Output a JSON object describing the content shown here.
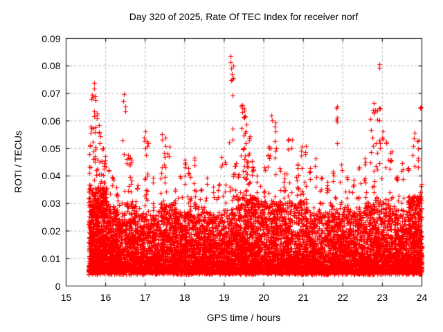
{
  "chart_data": {
    "type": "scatter",
    "title": "Day 320 of 2025, Rate Of TEC Index for receiver norf",
    "xlabel": "GPS time / hours",
    "ylabel": "ROTI / TECUs",
    "xlim": [
      15,
      24
    ],
    "ylim": [
      0,
      0.09
    ],
    "xticks": [
      15,
      16,
      17,
      18,
      19,
      20,
      21,
      22,
      23,
      24
    ],
    "yticks": [
      0,
      0.01,
      0.02,
      0.03,
      0.04,
      0.05,
      0.06,
      0.07,
      0.08,
      0.09
    ],
    "ytick_labels": [
      "0",
      "0.01",
      "0.02",
      "0.03",
      "0.04",
      "0.05",
      "0.06",
      "0.07",
      "0.08",
      "0.09"
    ],
    "grid": true,
    "legend": "none",
    "marker": {
      "symbol": "plus",
      "color": "#ff0000",
      "size": 7,
      "line_width": 1.2
    },
    "colors": {
      "grid": "#b0b0b0",
      "border": "#000000",
      "text": "#000000",
      "background": "#ffffff"
    },
    "data_time_range": [
      15.55,
      24.0
    ],
    "scatter_model": {
      "seed": 2025320,
      "baseline": {
        "n": 3400,
        "t_min": 15.56,
        "t_max": 23.99,
        "y_min": 0.0042,
        "y_scale": 0.0068,
        "y_cap": 0.035
      },
      "gap": {
        "t0": 19.95,
        "t1": 20.05,
        "drop": 0.5
      },
      "dense_bands": [
        [
          15.57,
          16.03,
          800,
          0.036
        ],
        [
          16.03,
          16.32,
          280,
          0.028
        ],
        [
          16.32,
          16.78,
          330,
          0.031
        ],
        [
          16.78,
          17.3,
          300,
          0.026
        ],
        [
          17.3,
          17.78,
          320,
          0.03
        ],
        [
          17.78,
          18.12,
          260,
          0.027
        ],
        [
          18.12,
          18.5,
          280,
          0.029
        ],
        [
          18.5,
          19.0,
          300,
          0.027
        ],
        [
          19.0,
          19.3,
          220,
          0.028
        ],
        [
          19.3,
          19.85,
          480,
          0.033
        ],
        [
          19.85,
          20.45,
          400,
          0.031
        ],
        [
          20.45,
          21.15,
          420,
          0.031
        ],
        [
          21.15,
          21.7,
          300,
          0.027
        ],
        [
          21.7,
          22.05,
          280,
          0.029
        ],
        [
          22.05,
          22.55,
          300,
          0.028
        ],
        [
          22.55,
          23.3,
          500,
          0.031
        ],
        [
          23.3,
          23.65,
          280,
          0.028
        ],
        [
          23.65,
          24.0,
          450,
          0.033
        ]
      ],
      "spikes": [
        [
          15.6,
          0.052
        ],
        [
          15.63,
          0.06
        ],
        [
          15.66,
          0.07
        ],
        [
          15.7,
          0.0775
        ],
        [
          15.74,
          0.0725
        ],
        [
          15.78,
          0.066
        ],
        [
          15.82,
          0.059
        ],
        [
          15.87,
          0.055
        ],
        [
          15.93,
          0.052
        ],
        [
          15.99,
          0.049
        ],
        [
          16.08,
          0.044
        ],
        [
          16.18,
          0.04
        ],
        [
          16.28,
          0.036
        ],
        [
          16.45,
          0.0725
        ],
        [
          16.5,
          0.066
        ],
        [
          16.57,
          0.05
        ],
        [
          16.66,
          0.047
        ],
        [
          16.8,
          0.038
        ],
        [
          16.99,
          0.057
        ],
        [
          17.06,
          0.053
        ],
        [
          17.2,
          0.04
        ],
        [
          17.42,
          0.057
        ],
        [
          17.5,
          0.054
        ],
        [
          17.61,
          0.051
        ],
        [
          17.76,
          0.037
        ],
        [
          17.9,
          0.041
        ],
        [
          18.0,
          0.048
        ],
        [
          18.11,
          0.043
        ],
        [
          18.26,
          0.047
        ],
        [
          18.41,
          0.037
        ],
        [
          18.56,
          0.04
        ],
        [
          18.72,
          0.037
        ],
        [
          18.86,
          0.039
        ],
        [
          18.95,
          0.047
        ],
        [
          19.03,
          0.046
        ],
        [
          19.16,
          0.0845
        ],
        [
          19.19,
          0.0815
        ],
        [
          19.27,
          0.045
        ],
        [
          19.36,
          0.043
        ],
        [
          19.45,
          0.067
        ],
        [
          19.51,
          0.0655
        ],
        [
          19.56,
          0.061
        ],
        [
          19.63,
          0.056
        ],
        [
          19.71,
          0.047
        ],
        [
          19.82,
          0.041
        ],
        [
          19.92,
          0.039
        ],
        [
          20.02,
          0.045
        ],
        [
          20.11,
          0.051
        ],
        [
          20.2,
          0.0645
        ],
        [
          20.28,
          0.061
        ],
        [
          20.41,
          0.043
        ],
        [
          20.52,
          0.041
        ],
        [
          20.62,
          0.0565
        ],
        [
          20.71,
          0.0535
        ],
        [
          20.86,
          0.047
        ],
        [
          20.96,
          0.0525
        ],
        [
          21.06,
          0.0515
        ],
        [
          21.16,
          0.043
        ],
        [
          21.31,
          0.047
        ],
        [
          21.46,
          0.041
        ],
        [
          21.61,
          0.039
        ],
        [
          21.76,
          0.043
        ],
        [
          21.85,
          0.0655
        ],
        [
          21.96,
          0.045
        ],
        [
          22.11,
          0.041
        ],
        [
          22.26,
          0.039
        ],
        [
          22.41,
          0.045
        ],
        [
          22.56,
          0.048
        ],
        [
          22.71,
          0.061
        ],
        [
          22.79,
          0.067
        ],
        [
          22.86,
          0.064
        ],
        [
          22.92,
          0.0825
        ],
        [
          23.01,
          0.057
        ],
        [
          23.11,
          0.053
        ],
        [
          23.21,
          0.049
        ],
        [
          23.36,
          0.041
        ],
        [
          23.51,
          0.045
        ],
        [
          23.66,
          0.043
        ],
        [
          23.81,
          0.056
        ],
        [
          23.91,
          0.054
        ],
        [
          23.97,
          0.068
        ]
      ]
    }
  }
}
